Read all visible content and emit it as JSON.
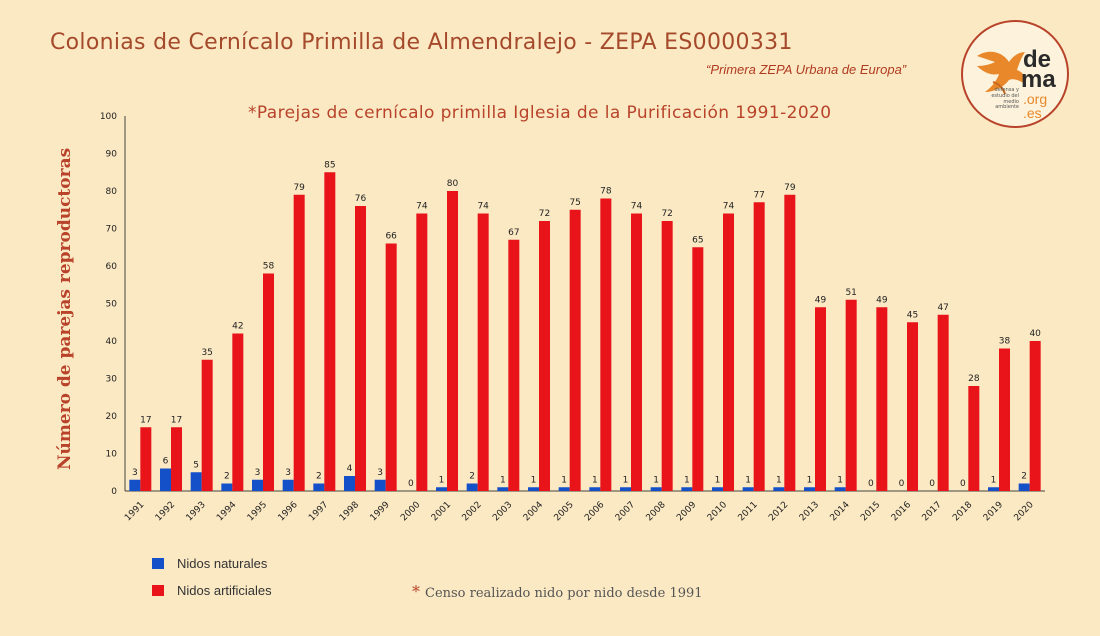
{
  "header": {
    "title": "Colonias de Cernícalo Primilla de Almendralejo - ZEPA ES0000331",
    "subtitle": "“Primera ZEPA Urbana de Europa”"
  },
  "logo": {
    "line1": "de",
    "line2": "ma",
    "line3": ".org",
    "line4": ".es",
    "tagline": "defensa y estudio del medio ambiente"
  },
  "footnote": {
    "star": "*",
    "text": "Censo realizado nido por nido desde 1991"
  },
  "colors": {
    "natural": "#1450c8",
    "artificial": "#e8141a",
    "title": "#a5492b"
  },
  "chart_data": {
    "type": "bar",
    "title": "*Parejas de cernícalo primilla Iglesia de la Purificación 1991-2020",
    "ylabel": "Número de parejas reproductoras",
    "xlabel": "",
    "ylim": [
      0,
      100
    ],
    "yticks": [
      0,
      10,
      20,
      30,
      40,
      50,
      60,
      70,
      80,
      90,
      100
    ],
    "grid": false,
    "legend": "bottom-left",
    "categories": [
      "1991",
      "1992",
      "1993",
      "1994",
      "1995",
      "1996",
      "1997",
      "1998",
      "1999",
      "2000",
      "2001",
      "2002",
      "2003",
      "2004",
      "2005",
      "2006",
      "2007",
      "2008",
      "2009",
      "2010",
      "2011",
      "2012",
      "2013",
      "2014",
      "2015",
      "2016",
      "2017",
      "2018",
      "2019",
      "2020"
    ],
    "series": [
      {
        "name": "Nidos naturales",
        "values": [
          3,
          6,
          5,
          2,
          3,
          3,
          2,
          4,
          3,
          0,
          1,
          2,
          1,
          1,
          1,
          1,
          1,
          1,
          1,
          1,
          1,
          1,
          1,
          1,
          0,
          0,
          0,
          0,
          1,
          2
        ]
      },
      {
        "name": "Nidos artificiales",
        "values": [
          17,
          17,
          35,
          42,
          58,
          79,
          85,
          76,
          66,
          74,
          80,
          74,
          67,
          72,
          75,
          78,
          74,
          72,
          65,
          74,
          77,
          79,
          49,
          51,
          49,
          45,
          47,
          28,
          38,
          40
        ]
      }
    ]
  }
}
